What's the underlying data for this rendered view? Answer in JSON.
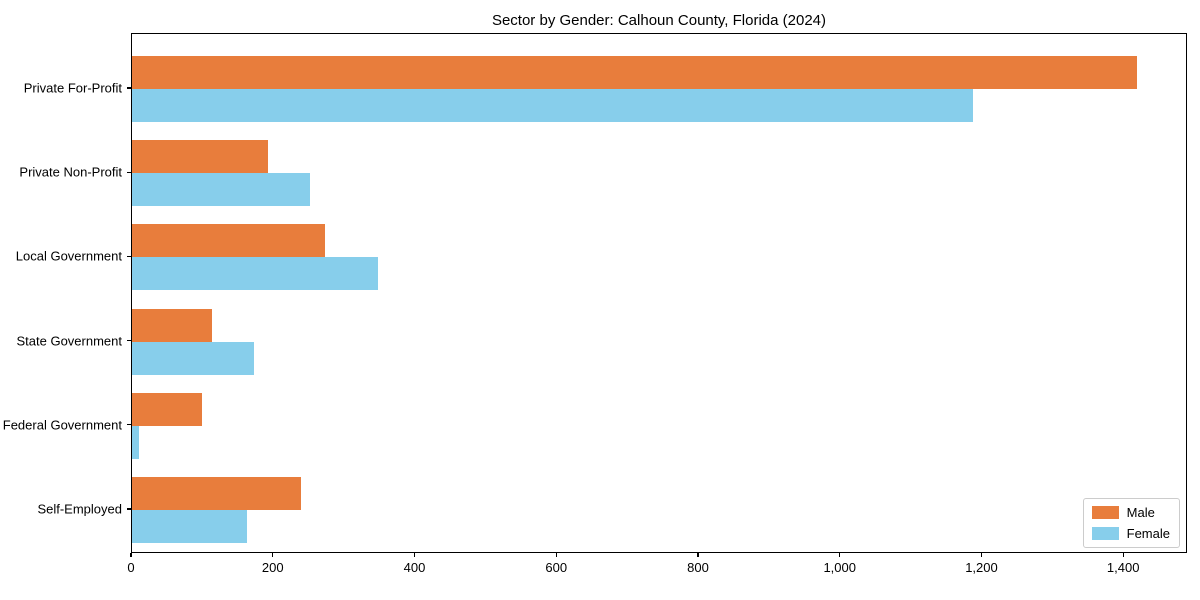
{
  "chart_data": {
    "type": "bar",
    "orientation": "horizontal",
    "title": "Sector by Gender: Calhoun County, Florida (2024)",
    "xlabel": "",
    "ylabel": "",
    "grid": false,
    "categories": [
      "Private For-Profit",
      "Private Non-Profit",
      "Local Government",
      "State Government",
      "Federal Government",
      "Self-Employed"
    ],
    "series": [
      {
        "name": "Male",
        "color": "#E87D3C",
        "values": [
          1418,
          192,
          272,
          113,
          99,
          238
        ]
      },
      {
        "name": "Female",
        "color": "#87CEEB",
        "values": [
          1187,
          251,
          347,
          172,
          10,
          162
        ]
      }
    ],
    "xlim": [
      0,
      1490
    ],
    "xticks": {
      "values": [
        0,
        200,
        400,
        600,
        800,
        1000,
        1200,
        1400
      ],
      "labels": [
        "0",
        "200",
        "400",
        "600",
        "800",
        "1,000",
        "1,200",
        "1,400"
      ]
    },
    "legend": {
      "position": "lower right",
      "entries": [
        "Male",
        "Female"
      ]
    },
    "colors": {
      "male_bar": "#E87D3C",
      "female_bar": "#87CEEB",
      "axis": "#000000",
      "text": "#000000",
      "legend_border": "#cccccc",
      "background": "#ffffff"
    }
  }
}
